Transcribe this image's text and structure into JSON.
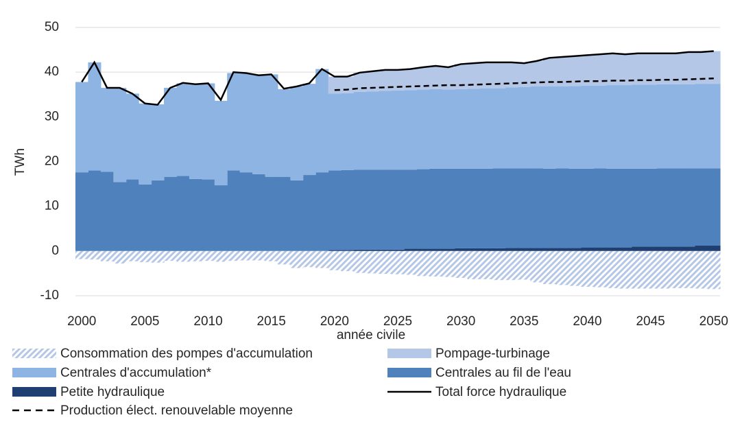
{
  "chart_data": {
    "type": "stacked_area_line",
    "x_label": "année civile",
    "y_label": "TWh",
    "x": [
      2000,
      2001,
      2002,
      2003,
      2004,
      2005,
      2006,
      2007,
      2008,
      2009,
      2010,
      2011,
      2012,
      2013,
      2014,
      2015,
      2016,
      2017,
      2018,
      2019,
      2020,
      2021,
      2022,
      2023,
      2024,
      2025,
      2026,
      2027,
      2028,
      2029,
      2030,
      2031,
      2032,
      2033,
      2034,
      2035,
      2036,
      2037,
      2038,
      2039,
      2040,
      2041,
      2042,
      2043,
      2044,
      2045,
      2046,
      2047,
      2048,
      2049,
      2050
    ],
    "xlim": [
      1999.5,
      2050.5
    ],
    "xticks": [
      2000,
      2005,
      2010,
      2015,
      2020,
      2025,
      2030,
      2035,
      2040,
      2045,
      2050
    ],
    "ylim": [
      -10,
      50
    ],
    "yticks": [
      -10,
      0,
      10,
      20,
      30,
      40,
      50
    ],
    "grid": true,
    "series": [
      {
        "name": "Consommation des pompes d'accumulation",
        "kind": "area",
        "pattern": "hatch",
        "color": "#b4c7e7",
        "values": [
          -1.8,
          -1.9,
          -2.3,
          -2.8,
          -2.3,
          -2.5,
          -2.6,
          -2.2,
          -2.4,
          -2.3,
          -2.2,
          -2.4,
          -2.2,
          -2.1,
          -2.1,
          -2.3,
          -3.0,
          -3.8,
          -3.6,
          -3.8,
          -4.3,
          -4.5,
          -4.9,
          -5.0,
          -5.1,
          -5.2,
          -5.3,
          -5.6,
          -5.7,
          -5.8,
          -6.0,
          -6.3,
          -6.3,
          -6.5,
          -6.5,
          -6.4,
          -7.0,
          -7.4,
          -7.6,
          -7.8,
          -8.0,
          -8.1,
          -8.3,
          -8.4,
          -8.4,
          -8.4,
          -8.4,
          -8.3,
          -8.3,
          -8.4,
          -8.5
        ]
      },
      {
        "name": "Pompage-turbinage",
        "kind": "area",
        "color": "#b4c7e7",
        "values": [
          null,
          null,
          null,
          null,
          null,
          null,
          null,
          null,
          null,
          null,
          null,
          null,
          null,
          null,
          null,
          null,
          null,
          null,
          null,
          null,
          3.8,
          3.7,
          4.3,
          4.5,
          4.7,
          4.6,
          4.7,
          5.0,
          5.2,
          5.0,
          5.6,
          5.7,
          5.8,
          5.8,
          5.6,
          5.3,
          5.7,
          6.4,
          6.6,
          6.7,
          6.8,
          7.0,
          7.1,
          6.9,
          7.0,
          7.0,
          6.9,
          6.9,
          7.2,
          7.1,
          7.3
        ]
      },
      {
        "name": "Centrales d'accumulation*",
        "kind": "area",
        "color": "#8eb4e3",
        "values": [
          20.2,
          24.2,
          18.8,
          21.1,
          19.2,
          18.1,
          17.0,
          19.9,
          20.7,
          21.2,
          21.5,
          18.9,
          21.8,
          22.1,
          22.1,
          22.9,
          19.6,
          21.0,
          20.4,
          23.1,
          17.2,
          17.2,
          17.4,
          17.5,
          17.6,
          17.7,
          17.8,
          17.8,
          17.8,
          17.7,
          17.8,
          17.9,
          18.0,
          17.9,
          18.1,
          18.2,
          18.3,
          18.4,
          18.3,
          18.5,
          18.6,
          18.5,
          18.7,
          18.7,
          18.8,
          18.8,
          18.8,
          18.8,
          18.8,
          18.9,
          18.9
        ]
      },
      {
        "name": "Centrales au fil de l'eau",
        "kind": "area",
        "color": "#4f81bd",
        "values": [
          17.6,
          18.0,
          17.7,
          15.4,
          16.0,
          14.9,
          15.8,
          16.6,
          16.8,
          16.1,
          16.0,
          14.7,
          18.0,
          17.6,
          17.2,
          16.6,
          16.6,
          15.8,
          17.0,
          17.6,
          17.8,
          17.9,
          17.9,
          17.9,
          17.9,
          17.9,
          17.7,
          17.8,
          17.9,
          17.9,
          17.8,
          17.8,
          17.8,
          17.9,
          17.8,
          17.8,
          17.8,
          17.7,
          17.8,
          17.7,
          17.6,
          17.7,
          17.6,
          17.6,
          17.4,
          17.4,
          17.5,
          17.5,
          17.5,
          17.3,
          17.3
        ]
      },
      {
        "name": "Petite hydraulique",
        "kind": "area",
        "color": "#1f3f73",
        "values": [
          null,
          null,
          null,
          null,
          null,
          null,
          null,
          null,
          null,
          null,
          null,
          null,
          null,
          null,
          null,
          null,
          null,
          null,
          null,
          null,
          0.2,
          0.2,
          0.3,
          0.3,
          0.3,
          0.3,
          0.5,
          0.5,
          0.5,
          0.5,
          0.6,
          0.6,
          0.6,
          0.6,
          0.7,
          0.7,
          0.7,
          0.7,
          0.7,
          0.7,
          0.8,
          0.8,
          0.8,
          0.8,
          1.0,
          1.0,
          1.0,
          1.0,
          1.0,
          1.2,
          1.2
        ]
      },
      {
        "name": "Total force hydraulique",
        "kind": "line",
        "color": "#000000",
        "values": [
          37.8,
          42.2,
          36.5,
          36.5,
          35.2,
          33.0,
          32.7,
          36.5,
          37.6,
          37.3,
          37.5,
          33.8,
          40.0,
          39.8,
          39.3,
          39.5,
          36.3,
          36.8,
          37.5,
          40.7,
          39.0,
          39.0,
          39.9,
          40.2,
          40.5,
          40.5,
          40.7,
          41.1,
          41.4,
          41.1,
          41.8,
          42.0,
          42.2,
          42.2,
          42.2,
          42.0,
          42.5,
          43.2,
          43.4,
          43.6,
          43.8,
          44.0,
          44.2,
          44.0,
          44.2,
          44.2,
          44.2,
          44.2,
          44.5,
          44.5,
          44.7
        ]
      },
      {
        "name": "Production élect. renouvelable moyenne",
        "kind": "line",
        "dash": true,
        "color": "#000000",
        "values": [
          null,
          null,
          null,
          null,
          null,
          null,
          null,
          null,
          null,
          null,
          null,
          null,
          null,
          null,
          null,
          null,
          null,
          null,
          null,
          null,
          36.0,
          36.1,
          36.4,
          36.5,
          36.6,
          36.7,
          36.8,
          36.9,
          37.0,
          37.1,
          37.1,
          37.2,
          37.3,
          37.4,
          37.5,
          37.6,
          37.7,
          37.8,
          37.8,
          37.9,
          38.0,
          38.0,
          38.1,
          38.1,
          38.2,
          38.2,
          38.3,
          38.3,
          38.4,
          38.5,
          38.6
        ]
      }
    ]
  }
}
